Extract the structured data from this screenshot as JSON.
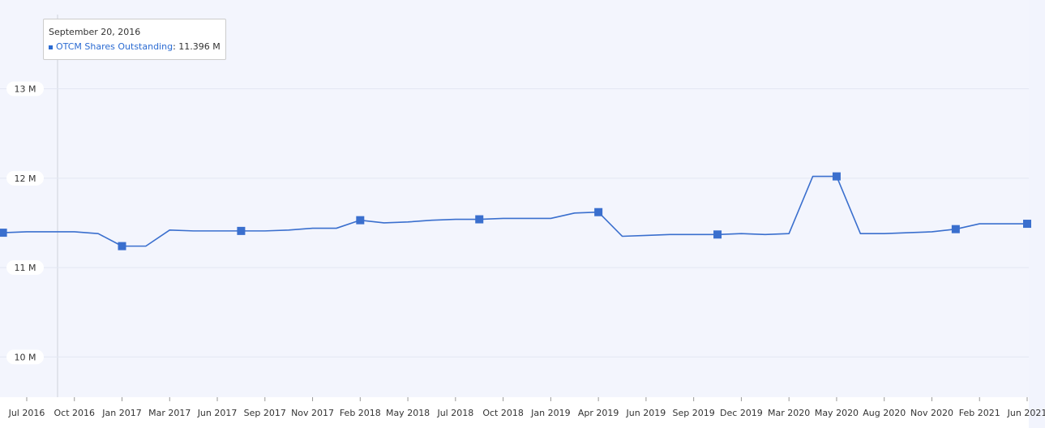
{
  "chart_data": {
    "type": "line",
    "categories": [
      null,
      "Jul 2016",
      null,
      "Oct 2016",
      null,
      "Jan 2017",
      null,
      "Mar 2017",
      null,
      "Jun 2017",
      null,
      "Sep 2017",
      null,
      "Nov 2017",
      null,
      "Feb 2018",
      null,
      "May 2018",
      null,
      "Jul 2018",
      null,
      "Oct 2018",
      null,
      "Jan 2019",
      null,
      "Apr 2019",
      null,
      "Jun 2019",
      null,
      "Sep 2019",
      null,
      "Dec 2019",
      null,
      "Mar 2020",
      null,
      "May 2020",
      null,
      "Aug 2020",
      null,
      "Nov 2020",
      null,
      "Feb 2021",
      null,
      "Jun 2021"
    ],
    "series": [
      {
        "name": "OTCM Shares Outstanding",
        "color": "#3a6fce",
        "values": [
          11.39,
          11.4,
          11.4,
          11.4,
          11.38,
          11.24,
          11.24,
          11.42,
          11.41,
          11.41,
          11.41,
          11.41,
          11.42,
          11.44,
          11.44,
          11.53,
          11.5,
          11.51,
          11.53,
          11.54,
          11.54,
          11.55,
          11.55,
          11.55,
          11.61,
          11.62,
          11.35,
          11.36,
          11.37,
          11.37,
          11.37,
          11.38,
          11.37,
          11.38,
          12.02,
          12.02,
          11.38,
          11.38,
          11.39,
          11.4,
          11.43,
          11.49,
          11.49,
          11.49
        ]
      }
    ],
    "ylim": [
      9.55,
      13.83
    ],
    "yticks": [
      {
        "value": 10,
        "label": "10 M"
      },
      {
        "value": 11,
        "label": "11 M"
      },
      {
        "value": 12,
        "label": "12 M"
      },
      {
        "value": 13,
        "label": "13 M"
      }
    ],
    "grid": true,
    "tooltip": {
      "title": "September 20, 2016",
      "text": "11.396 M"
    }
  }
}
